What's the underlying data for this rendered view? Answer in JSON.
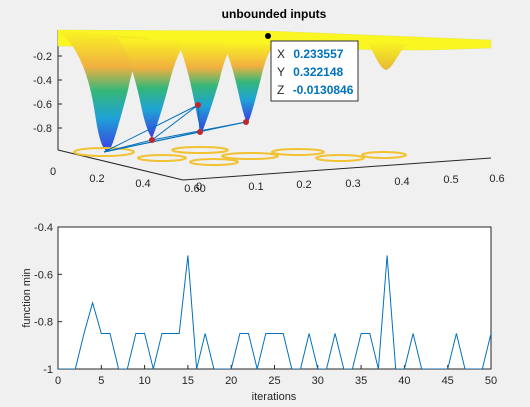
{
  "figure": {
    "background": "#f0f0f0"
  },
  "top_chart": {
    "title": "unbounded inputs",
    "type": "surface3d",
    "z_ticks": [
      "-0.2",
      "-0.4",
      "-0.6",
      "-0.8"
    ],
    "x_ticks": [
      "0",
      "0.2",
      "0.4",
      "0.60"
    ],
    "y_ticks": [
      "0",
      "0.1",
      "0.2",
      "0.3",
      "0.4",
      "0.5",
      "0.6"
    ],
    "datatip": {
      "x_label": "X",
      "x_value": "0.233557",
      "y_label": "Y",
      "y_value": "0.322148",
      "z_label": "Z",
      "z_value": "-0.0130846"
    },
    "colors": {
      "surface_top": "#f9f621",
      "marker": "#c0272d",
      "path": "#0072bd",
      "value_text": "#0072bd"
    }
  },
  "chart_data": {
    "type": "line",
    "xlabel": "iterations",
    "ylabel": "function min",
    "xlim": [
      0,
      50
    ],
    "ylim": [
      -1,
      -0.4
    ],
    "x_ticks": [
      "0",
      "5",
      "10",
      "15",
      "20",
      "25",
      "30",
      "35",
      "40",
      "45",
      "50"
    ],
    "y_ticks": [
      "-0.4",
      "-0.6",
      "-0.8",
      "-1"
    ],
    "color": "#0072bd",
    "x": [
      0,
      1,
      2,
      3,
      4,
      5,
      6,
      7,
      8,
      9,
      10,
      11,
      12,
      13,
      14,
      15,
      16,
      17,
      18,
      19,
      20,
      21,
      22,
      23,
      24,
      25,
      26,
      27,
      28,
      29,
      30,
      31,
      32,
      33,
      34,
      35,
      36,
      37,
      38,
      39,
      40,
      41,
      42,
      43,
      44,
      45,
      46,
      47,
      48,
      49,
      50
    ],
    "y": [
      -1,
      -1,
      -1,
      -0.85,
      -0.72,
      -0.85,
      -0.85,
      -1,
      -1,
      -0.85,
      -0.85,
      -1,
      -0.85,
      -0.85,
      -0.85,
      -0.52,
      -1,
      -0.85,
      -1,
      -1,
      -1,
      -0.85,
      -0.85,
      -1,
      -0.85,
      -0.85,
      -0.85,
      -1,
      -1,
      -0.85,
      -1,
      -1,
      -0.85,
      -1,
      -1,
      -0.85,
      -0.85,
      -1,
      -0.52,
      -1,
      -1,
      -0.85,
      -1,
      -1,
      -1,
      -1,
      -0.85,
      -1,
      -1,
      -1,
      -0.85
    ]
  }
}
